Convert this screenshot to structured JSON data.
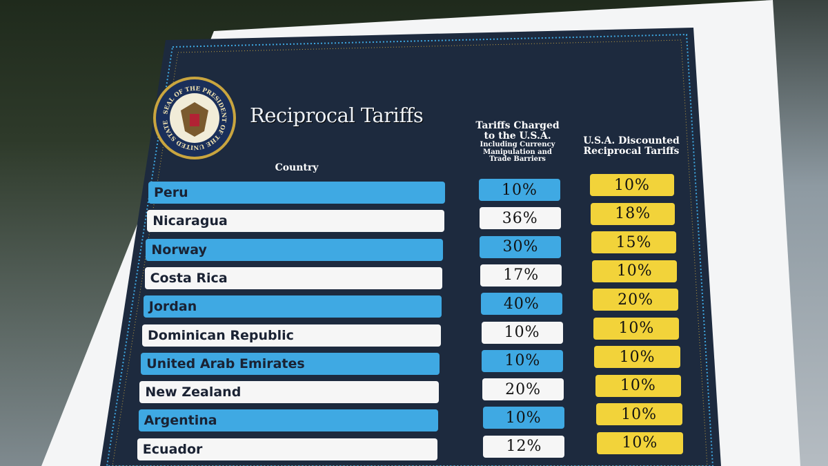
{
  "title": "Reciprocal Tariffs",
  "seal": "SEAL OF THE PRESIDENT OF THE UNITED STATES",
  "table": {
    "headers": {
      "country": "Country",
      "charged": "Tariffs Charged to the U.S.A.",
      "charged_note": "Including Currency Manipulation and Trade Barriers",
      "discounted": "U.S.A. Discounted Reciprocal Tariffs"
    },
    "rows": [
      [
        "Peru",
        "10%",
        "10%"
      ],
      [
        "Nicaragua",
        "36%",
        "18%"
      ],
      [
        "Norway",
        "30%",
        "15%"
      ],
      [
        "Costa Rica",
        "17%",
        "10%"
      ],
      [
        "Jordan",
        "40%",
        "20%"
      ],
      [
        "Dominican Republic",
        "10%",
        "10%"
      ],
      [
        "United Arab Emirates",
        "10%",
        "10%"
      ],
      [
        "New Zealand",
        "20%",
        "10%"
      ],
      [
        "Argentina",
        "10%",
        "10%"
      ],
      [
        "Ecuador",
        "12%",
        "10%"
      ]
    ]
  }
}
